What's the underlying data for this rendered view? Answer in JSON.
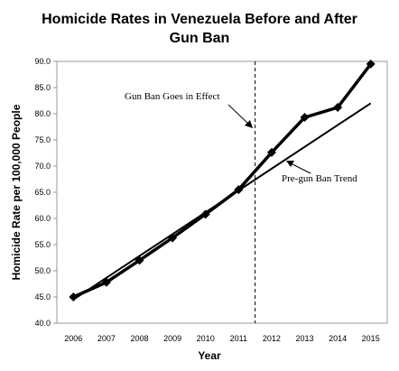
{
  "chart_data": {
    "type": "line",
    "title_lines": [
      "Homicide Rates in Venezuela Before and After",
      "Gun Ban"
    ],
    "xlabel": "Year",
    "ylabel": "Homicide Rate per 100,000 People",
    "ylim": [
      40.0,
      90.0
    ],
    "yticks": [
      "40.0",
      "45.0",
      "50.0",
      "55.0",
      "60.0",
      "65.0",
      "70.0",
      "75.0",
      "80.0",
      "85.0",
      "90.0"
    ],
    "categories": [
      "2006",
      "2007",
      "2008",
      "2009",
      "2010",
      "2011",
      "2012",
      "2013",
      "2014",
      "2015"
    ],
    "series": [
      {
        "values": [
          45.0,
          47.8,
          52.0,
          56.3,
          60.8,
          65.5,
          72.6,
          79.3,
          81.2,
          89.5
        ],
        "color": "#000000"
      }
    ],
    "trend_line": {
      "from": [
        "2006",
        44.5
      ],
      "to": [
        "2015",
        82.0
      ],
      "color": "#000000"
    },
    "event_line": {
      "x_between": [
        "2011",
        "2012"
      ],
      "style": "dashed",
      "color": "#000000"
    },
    "annotations": {
      "gun_ban": "Gun Ban Goes in Effect",
      "trend": "Pre-gun Ban Trend"
    },
    "grid": false,
    "legend": "none"
  }
}
